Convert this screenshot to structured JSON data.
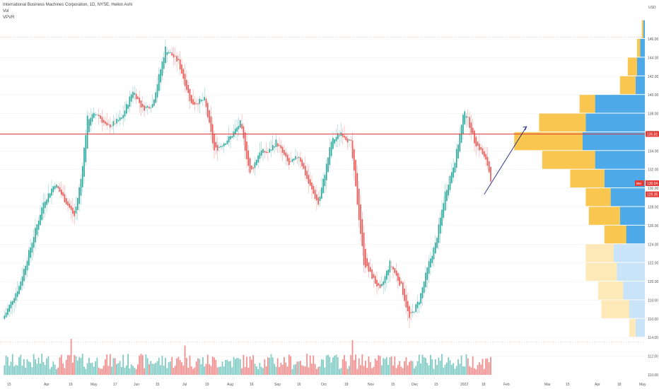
{
  "legend": {
    "symbol_line": "International Business Machines Corporation, 1D, NYSE, Heikin Ashi",
    "vol": "Vol",
    "vpvr": "VPVR"
  },
  "chart_data": {
    "type": "candlestick",
    "title": "International Business Machines Corporation, 1D, NYSE, Heikin Ashi",
    "y_axis": {
      "currency": "USD",
      "ticks": [
        "146.00",
        "144.00",
        "142.00",
        "140.00",
        "138.00",
        "136.00",
        "134.00",
        "132.00",
        "130.00",
        "128.00",
        "126.00",
        "124.00",
        "122.00",
        "120.00",
        "118.00",
        "116.00",
        "114.00",
        "112.00",
        "110.00"
      ],
      "range": [
        109,
        150
      ]
    },
    "x_axis": {
      "ticks": [
        "15",
        "Apr",
        "19",
        "May",
        "17",
        "Jun",
        "15",
        "Jul",
        "19",
        "Aug",
        "16",
        "Sep",
        "16",
        "Oct",
        "18",
        "Nov",
        "15",
        "Dec",
        "15",
        "2022",
        "18",
        "Feb",
        "Mar",
        "15",
        "Apr",
        "18",
        "May"
      ]
    },
    "price_labels": [
      {
        "label": "135.81",
        "value": 135.81,
        "color": "#e53935"
      },
      {
        "label": "130.54",
        "tag": "BM",
        "value": 130.54,
        "color": "#e53935"
      },
      {
        "label": "129.35",
        "value": 129.35,
        "color": "#e53935"
      }
    ],
    "horizontal_line": {
      "value": 135.81,
      "color": "#e53935"
    },
    "dotted_levels": [
      146.2,
      113.5
    ],
    "colors": {
      "up": "#26a69a",
      "down": "#ef5350",
      "vol_up": "#80cbc4",
      "vol_down": "#f48f8f",
      "profile_up": "#4da9e8",
      "profile_down": "#f9c74f",
      "arrow": "#1a237e"
    },
    "candle_anchors": {
      "days": [
        0,
        10,
        25,
        32,
        44,
        48,
        52,
        58,
        64,
        73,
        80,
        86,
        92,
        100,
        108,
        116,
        124,
        130,
        140,
        146,
        152,
        158,
        163,
        168,
        176,
        182,
        188,
        194,
        202,
        208,
        214,
        222,
        232,
        238,
        245,
        250,
        256,
        262,
        266,
        272,
        278,
        284,
        290,
        294,
        298,
        300
      ],
      "close": [
        116,
        119.5,
        128.5,
        130.5,
        127,
        131,
        137.5,
        138,
        136.5,
        137.5,
        140.5,
        138.5,
        139,
        145,
        143.5,
        139,
        139.5,
        134,
        135.5,
        137,
        131.5,
        134,
        133.8,
        135,
        132.5,
        133.5,
        130.5,
        128.3,
        135,
        136,
        134.8,
        122,
        119,
        122,
        119.5,
        116,
        118,
        122,
        124,
        129.5,
        133,
        138.5,
        135,
        134,
        132.5,
        131
      ]
    },
    "volume_profile": {
      "price_bins": [
        147,
        145,
        143,
        141,
        139,
        137,
        135,
        133,
        131,
        129,
        127,
        125,
        123,
        121,
        119,
        117,
        115
      ],
      "up": [
        1,
        3,
        5,
        6,
        32,
        38,
        40,
        32,
        26,
        22,
        16,
        12,
        20,
        18,
        14,
        10,
        6
      ],
      "down": [
        1,
        2,
        6,
        10,
        10,
        30,
        44,
        34,
        22,
        16,
        20,
        14,
        18,
        20,
        16,
        18,
        4
      ],
      "muted_below": 123.5
    },
    "arrow": {
      "from_day": 296,
      "from_price": 129.35,
      "to_day": 322,
      "to_price": 136.6
    }
  }
}
